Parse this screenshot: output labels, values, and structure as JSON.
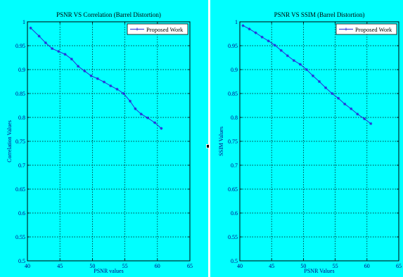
{
  "colors": {
    "background": "#00ffff",
    "series": "#2b2bd8",
    "axis_text": "#000080",
    "grid": "#000000",
    "legend_bg": "#ffffff"
  },
  "icons": {
    "splitter": "splitter-handle-icon"
  },
  "chart_data": [
    {
      "type": "line",
      "title": "PSNR VS Correlation (Barrel Distortion)",
      "xlabel": "PSNR values",
      "ylabel": "Correlation Values",
      "xlim": [
        40,
        65
      ],
      "ylim": [
        0.5,
        1
      ],
      "xticks": [
        "40",
        "45",
        "50",
        "55",
        "60",
        "65"
      ],
      "yticks": [
        "0.5",
        "0.55",
        "0.6",
        "0.65",
        "0.7",
        "0.75",
        "0.8",
        "0.85",
        "0.9",
        "0.95",
        "1"
      ],
      "grid": true,
      "legend_position": "top-right",
      "series": [
        {
          "name": "Proposed Work",
          "x": [
            40.5,
            41.8,
            42.8,
            43.8,
            44.8,
            45.8,
            46.8,
            47.8,
            48.8,
            49.8,
            50.8,
            51.8,
            52.8,
            53.8,
            54.8,
            55.8,
            56.6,
            57.5,
            58.5,
            59.6,
            60.6
          ],
          "y": [
            0.987,
            0.97,
            0.956,
            0.944,
            0.938,
            0.932,
            0.922,
            0.907,
            0.897,
            0.887,
            0.881,
            0.874,
            0.866,
            0.859,
            0.85,
            0.834,
            0.818,
            0.807,
            0.799,
            0.789,
            0.777
          ]
        }
      ]
    },
    {
      "type": "line",
      "title": "PSNR VS SSIM (Barrel Distortion)",
      "xlabel": "PSNR Values",
      "ylabel": "SSIM Values",
      "xlim": [
        40,
        65
      ],
      "ylim": [
        0.5,
        1
      ],
      "xticks": [
        "40",
        "45",
        "50",
        "55",
        "60",
        "65"
      ],
      "yticks": [
        "0.5",
        "0.55",
        "0.6",
        "0.65",
        "0.7",
        "0.75",
        "0.8",
        "0.85",
        "0.9",
        "0.95",
        "1"
      ],
      "grid": true,
      "legend_position": "top-right",
      "series": [
        {
          "name": "Proposed Work",
          "x": [
            40.5,
            41.5,
            42.5,
            43.5,
            44.5,
            45.5,
            46.5,
            47.5,
            48.5,
            49.5,
            50.5,
            51.5,
            52.5,
            53.5,
            54.5,
            55.5,
            56.5,
            57.5,
            58.5,
            59.6,
            60.6
          ],
          "y": [
            0.992,
            0.985,
            0.977,
            0.968,
            0.96,
            0.951,
            0.94,
            0.929,
            0.919,
            0.911,
            0.9,
            0.887,
            0.875,
            0.862,
            0.85,
            0.84,
            0.828,
            0.818,
            0.807,
            0.797,
            0.787
          ]
        }
      ]
    }
  ]
}
